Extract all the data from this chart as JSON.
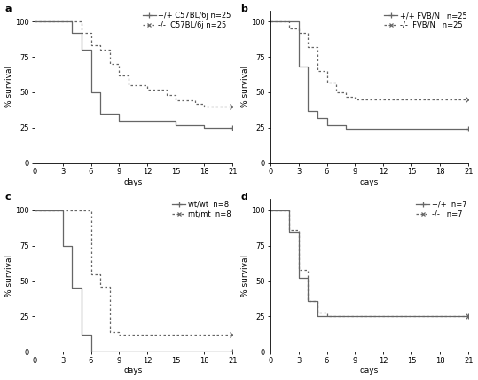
{
  "panel_a": {
    "label": "a",
    "solid": {
      "x": [
        0,
        4,
        4,
        5,
        5,
        6,
        6,
        7,
        7,
        9,
        9,
        15,
        15,
        18,
        18,
        21
      ],
      "y": [
        100,
        100,
        92,
        92,
        80,
        80,
        50,
        50,
        35,
        35,
        30,
        30,
        27,
        27,
        25,
        25
      ],
      "legend": "+/+ C57BL/6j n=25"
    },
    "dashed": {
      "x": [
        0,
        4,
        4,
        5,
        5,
        6,
        6,
        7,
        7,
        8,
        8,
        9,
        9,
        10,
        10,
        12,
        12,
        14,
        14,
        15,
        15,
        17,
        17,
        18,
        18,
        21
      ],
      "y": [
        100,
        100,
        100,
        100,
        92,
        92,
        83,
        83,
        80,
        80,
        70,
        70,
        62,
        62,
        55,
        55,
        52,
        52,
        48,
        48,
        44,
        44,
        42,
        42,
        40,
        40
      ],
      "legend": "-/-  C57BL/6j n=25"
    },
    "ylabel": "% survival",
    "xlabel": "days",
    "yticks": [
      0,
      25,
      50,
      75,
      100
    ],
    "xticks": [
      0,
      3,
      6,
      9,
      12,
      15,
      18,
      21
    ],
    "ylim": [
      0,
      108
    ],
    "xlim": [
      0,
      21
    ]
  },
  "panel_b": {
    "label": "b",
    "solid": {
      "x": [
        0,
        1,
        1,
        3,
        3,
        4,
        4,
        5,
        5,
        6,
        6,
        8,
        8,
        21
      ],
      "y": [
        100,
        100,
        100,
        100,
        68,
        68,
        37,
        37,
        32,
        32,
        27,
        27,
        24,
        24
      ],
      "legend": "+/+ FVB/N   n=25"
    },
    "dashed": {
      "x": [
        0,
        2,
        2,
        3,
        3,
        4,
        4,
        5,
        5,
        6,
        6,
        7,
        7,
        8,
        8,
        9,
        9,
        21
      ],
      "y": [
        100,
        100,
        95,
        95,
        92,
        92,
        82,
        82,
        65,
        65,
        57,
        57,
        50,
        50,
        47,
        47,
        45,
        45
      ],
      "legend": "-/-  FVB/N   n=25"
    },
    "ylabel": "% survival",
    "xlabel": "days",
    "yticks": [
      0,
      25,
      50,
      75,
      100
    ],
    "xticks": [
      0,
      3,
      6,
      9,
      12,
      15,
      18,
      21
    ],
    "ylim": [
      0,
      108
    ],
    "xlim": [
      0,
      21
    ]
  },
  "panel_c": {
    "label": "c",
    "solid": {
      "x": [
        0,
        3,
        3,
        4,
        4,
        5,
        5,
        6,
        6,
        21
      ],
      "y": [
        100,
        100,
        75,
        75,
        45,
        45,
        12,
        12,
        0,
        0
      ],
      "legend": "wt/wt  n=8"
    },
    "dashed": {
      "x": [
        0,
        5,
        5,
        6,
        6,
        7,
        7,
        8,
        8,
        9,
        9,
        21
      ],
      "y": [
        100,
        100,
        100,
        100,
        55,
        55,
        46,
        46,
        14,
        14,
        12,
        12
      ],
      "legend": "mt/mt  n=8"
    },
    "ylabel": "% survival",
    "xlabel": "days",
    "yticks": [
      0,
      25,
      50,
      75,
      100
    ],
    "xticks": [
      0,
      3,
      6,
      9,
      12,
      15,
      18,
      21
    ],
    "ylim": [
      0,
      108
    ],
    "xlim": [
      0,
      21
    ]
  },
  "panel_d": {
    "label": "d",
    "solid": {
      "x": [
        0,
        2,
        2,
        3,
        3,
        4,
        4,
        5,
        5,
        21
      ],
      "y": [
        100,
        100,
        85,
        85,
        52,
        52,
        36,
        36,
        25,
        25
      ],
      "legend": "+/+  n=7"
    },
    "dashed": {
      "x": [
        0,
        2,
        2,
        3,
        3,
        4,
        4,
        5,
        5,
        6,
        6,
        21
      ],
      "y": [
        100,
        100,
        86,
        86,
        58,
        58,
        36,
        36,
        28,
        28,
        25,
        25
      ],
      "legend": "-/-   n=7"
    },
    "ylabel": "% survival",
    "xlabel": "days",
    "yticks": [
      0,
      25,
      50,
      75,
      100
    ],
    "xticks": [
      0,
      3,
      6,
      9,
      12,
      15,
      18,
      21
    ],
    "ylim": [
      0,
      108
    ],
    "xlim": [
      0,
      21
    ]
  },
  "line_color": "#666666",
  "bg_color": "#ffffff",
  "font_size": 6.5,
  "label_font_size": 8,
  "tick_font_size": 6
}
